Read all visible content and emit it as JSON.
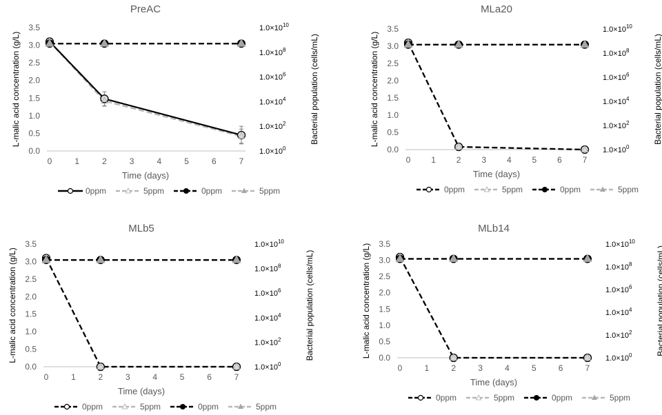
{
  "chart_data": [
    {
      "type": "line",
      "title": "PreAC",
      "xlabel": "Time (days)",
      "ylabel": "L-malic acid concentration (g/L)",
      "y2label": "Bacterial population (cells/mL)",
      "xticks": [
        "0",
        "1",
        "2",
        "3",
        "4",
        "5",
        "6",
        "7"
      ],
      "yticks": [
        "0.0",
        "0.5",
        "1.0",
        "1.5",
        "2.0",
        "2.5",
        "3.0",
        "3.5"
      ],
      "y2ticks": [
        {
          "base": "1.0×10",
          "exp": "0"
        },
        {
          "base": "1.0×10",
          "exp": "2"
        },
        {
          "base": "1.0×10",
          "exp": "4"
        },
        {
          "base": "1.0×10",
          "exp": "6"
        },
        {
          "base": "1.0×10",
          "exp": "8"
        },
        {
          "base": "1.0×10",
          "exp": "10"
        }
      ],
      "xlim": [
        0,
        7
      ],
      "ylim": [
        0,
        3.5
      ],
      "y2lim_log10": [
        0,
        10
      ],
      "y2scale": "log",
      "x": [
        0,
        2,
        7
      ],
      "series": [
        {
          "name": "0ppm",
          "axis": "left",
          "values": [
            3.1,
            1.48,
            0.45
          ],
          "error": [
            0,
            0.2,
            0.25
          ],
          "line": "solid",
          "color": "#000000",
          "marker": "open-circle"
        },
        {
          "name": "5ppm",
          "axis": "left",
          "values": [
            3.1,
            1.42,
            0.42
          ],
          "error": [
            0,
            0.15,
            0.2
          ],
          "line": "dashed",
          "color": "#b8b8b8",
          "marker": "open-triangle"
        },
        {
          "name": "0ppm",
          "axis": "right",
          "values": [
            500000000.0,
            500000000.0,
            500000000.0
          ],
          "line": "dashed",
          "color": "#000000",
          "marker": "filled-circle"
        },
        {
          "name": "5ppm",
          "axis": "right",
          "values": [
            500000000.0,
            500000000.0,
            500000000.0
          ],
          "line": "dashed",
          "color": "#b8b8b8",
          "marker": "filled-triangle"
        }
      ]
    },
    {
      "type": "line",
      "title": "MLa20",
      "xlabel": "Time (days)",
      "ylabel": "L-malic acid concentration (g/L)",
      "y2label": "Bacterial population (cells/mL)",
      "xticks": [
        "0",
        "1",
        "2",
        "3",
        "4",
        "5",
        "6",
        "7"
      ],
      "yticks": [
        "0.0",
        "0.5",
        "1.0",
        "1.5",
        "2.0",
        "2.5",
        "3.0",
        "3.5"
      ],
      "y2ticks": [
        {
          "base": "1.0×10",
          "exp": "0"
        },
        {
          "base": "1.0×10",
          "exp": "2"
        },
        {
          "base": "1.0×10",
          "exp": "4"
        },
        {
          "base": "1.0×10",
          "exp": "6"
        },
        {
          "base": "1.0×10",
          "exp": "8"
        },
        {
          "base": "1.0×10",
          "exp": "10"
        }
      ],
      "xlim": [
        0,
        7
      ],
      "ylim": [
        0,
        3.5
      ],
      "y2lim_log10": [
        0,
        10
      ],
      "y2scale": "log",
      "x": [
        0,
        2,
        7
      ],
      "series": [
        {
          "name": "0ppm",
          "axis": "left",
          "values": [
            3.1,
            0.08,
            0
          ],
          "line": "dashed",
          "color": "#000000",
          "marker": "open-circle"
        },
        {
          "name": "5ppm",
          "axis": "left",
          "values": [
            3.1,
            0.08,
            0
          ],
          "line": "dashed",
          "color": "#b8b8b8",
          "marker": "open-triangle"
        },
        {
          "name": "0ppm",
          "axis": "right",
          "values": [
            500000000.0,
            500000000.0,
            500000000.0
          ],
          "line": "dashed",
          "color": "#000000",
          "marker": "filled-circle"
        },
        {
          "name": "5ppm",
          "axis": "right",
          "values": [
            500000000.0,
            500000000.0,
            500000000.0
          ],
          "line": "dashed",
          "color": "#b8b8b8",
          "marker": "filled-triangle"
        }
      ]
    },
    {
      "type": "line",
      "title": "MLb5",
      "xlabel": "Time (days)",
      "ylabel": "L-malic acid concentration (g/L)",
      "y2label": "Bacterial population (cells/mL)",
      "xticks": [
        "0",
        "1",
        "2",
        "3",
        "4",
        "5",
        "6",
        "7"
      ],
      "yticks": [
        "0.0",
        "0.5",
        "1.0",
        "1.5",
        "2.0",
        "2.5",
        "3.0",
        "3.5"
      ],
      "y2ticks": [
        {
          "base": "1.0×10",
          "exp": "0"
        },
        {
          "base": "1.0×10",
          "exp": "2"
        },
        {
          "base": "1.0×10",
          "exp": "4"
        },
        {
          "base": "1.0×10",
          "exp": "6"
        },
        {
          "base": "1.0×10",
          "exp": "8"
        },
        {
          "base": "1.0×10",
          "exp": "10"
        }
      ],
      "xlim": [
        0,
        7
      ],
      "ylim": [
        0,
        3.5
      ],
      "y2lim_log10": [
        0,
        10
      ],
      "y2scale": "log",
      "x": [
        0,
        2,
        7
      ],
      "series": [
        {
          "name": "0ppm",
          "axis": "left",
          "values": [
            3.1,
            0,
            0
          ],
          "line": "dashed",
          "color": "#000000",
          "marker": "open-circle"
        },
        {
          "name": "5ppm",
          "axis": "left",
          "values": [
            3.1,
            0,
            0
          ],
          "line": "dashed",
          "color": "#b8b8b8",
          "marker": "open-triangle"
        },
        {
          "name": "0ppm",
          "axis": "right",
          "values": [
            500000000.0,
            500000000.0,
            500000000.0
          ],
          "line": "dashed",
          "color": "#000000",
          "marker": "filled-circle"
        },
        {
          "name": "5ppm",
          "axis": "right",
          "values": [
            500000000.0,
            500000000.0,
            500000000.0
          ],
          "line": "dashed",
          "color": "#b8b8b8",
          "marker": "filled-triangle"
        }
      ]
    },
    {
      "type": "line",
      "title": "MLb14",
      "xlabel": "Time (days)",
      "ylabel": "L-malic acid concentration (g/L)",
      "y2label": "Bacterial population (cells/mL)",
      "xticks": [
        "0",
        "1",
        "2",
        "3",
        "4",
        "5",
        "6",
        "7"
      ],
      "yticks": [
        "0.0",
        "0.5",
        "1.0",
        "1.5",
        "2.0",
        "2.5",
        "3.0",
        "3.5"
      ],
      "y2ticks": [
        {
          "base": "1.0×10",
          "exp": "0"
        },
        {
          "base": "1.0×10",
          "exp": "2"
        },
        {
          "base": "1.0×10",
          "exp": "4"
        },
        {
          "base": "1.0×10",
          "exp": "6"
        },
        {
          "base": "1.0×10",
          "exp": "8"
        },
        {
          "base": "1.0×10",
          "exp": "10"
        }
      ],
      "xlim": [
        0,
        7
      ],
      "ylim": [
        0,
        3.5
      ],
      "y2lim_log10": [
        0,
        10
      ],
      "y2scale": "log",
      "x": [
        0,
        2,
        7
      ],
      "series": [
        {
          "name": "0ppm",
          "axis": "left",
          "values": [
            3.1,
            0,
            0
          ],
          "line": "dashed",
          "color": "#000000",
          "marker": "open-circle"
        },
        {
          "name": "5ppm",
          "axis": "left",
          "values": [
            3.1,
            0,
            0
          ],
          "line": "dashed",
          "color": "#b8b8b8",
          "marker": "open-triangle"
        },
        {
          "name": "0ppm",
          "axis": "right",
          "values": [
            500000000.0,
            500000000.0,
            500000000.0
          ],
          "line": "dashed",
          "color": "#000000",
          "marker": "filled-circle"
        },
        {
          "name": "5ppm",
          "axis": "right",
          "values": [
            500000000.0,
            500000000.0,
            500000000.0
          ],
          "line": "dashed",
          "color": "#b8b8b8",
          "marker": "filled-triangle"
        }
      ]
    }
  ]
}
